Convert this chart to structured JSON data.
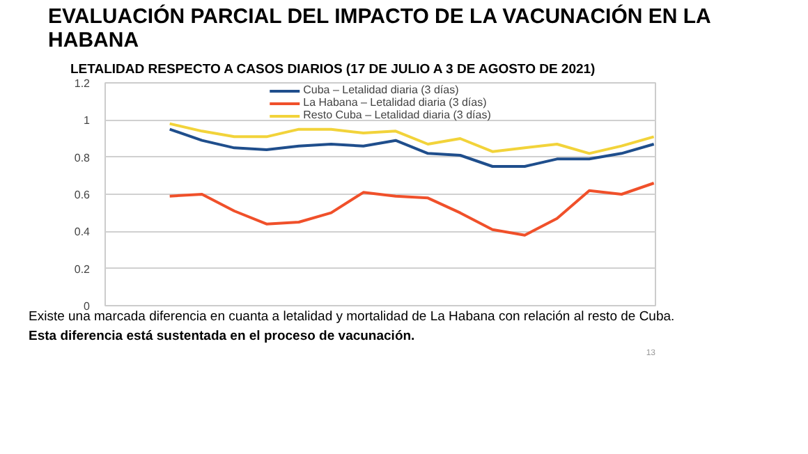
{
  "chart_data": {
    "type": "line",
    "title": "EVALUACIÓN PARCIAL DEL IMPACTO DE LA VACUNACIÓN EN LA HABANA",
    "subtitle": "LETALIDAD RESPECTO A CASOS DIARIOS (17 DE JULIO A 3 DE AGOSTO DE 2021)",
    "categories": [
      null,
      null,
      null,
      null,
      null,
      null,
      null,
      null,
      null,
      null,
      null,
      null,
      null,
      null,
      null,
      null
    ],
    "series": [
      {
        "name": "Cuba – Letalidad diaria (3 días)",
        "color": "#1f4e8c",
        "values": [
          0.95,
          0.89,
          0.85,
          0.84,
          0.86,
          0.87,
          0.86,
          0.89,
          0.82,
          0.81,
          0.75,
          0.75,
          0.79,
          0.79,
          0.82,
          0.87
        ]
      },
      {
        "name": "La Habana – Letalidad diaria (3 días)",
        "color": "#f0502a",
        "values": [
          0.59,
          0.6,
          0.51,
          0.44,
          0.45,
          0.5,
          0.61,
          0.59,
          0.58,
          0.5,
          0.41,
          0.38,
          0.47,
          0.62,
          0.6,
          0.66
        ]
      },
      {
        "name": "Resto Cuba – Letalidad diaria (3 días)",
        "color": "#f2d33a",
        "values": [
          0.98,
          0.94,
          0.91,
          0.91,
          0.95,
          0.95,
          0.93,
          0.94,
          0.87,
          0.9,
          0.83,
          0.85,
          0.87,
          0.82,
          0.86,
          0.91
        ]
      }
    ],
    "ylim": [
      0,
      1.2
    ],
    "yticks": [
      0,
      0.2,
      0.4,
      0.6,
      0.8,
      1,
      1.2
    ],
    "grid": "y",
    "legend": "top",
    "marker": "none",
    "line_style": "solid",
    "annotations": [
      "Existe una marcada diferencia en cuanta a letalidad y mortalidad de La Habana con relación al resto de Cuba.",
      "Esta diferencia está sustentada en el proceso de vacunación.",
      "13"
    ]
  }
}
